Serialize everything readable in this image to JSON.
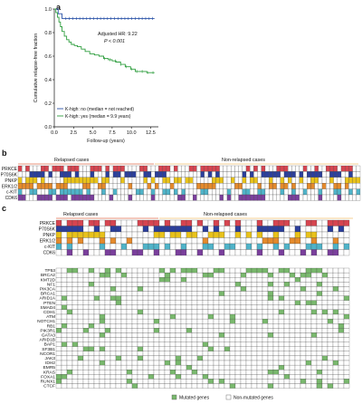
{
  "panel_a": {
    "letter": "a",
    "ylabel": "Cumulative relapse-free fraction",
    "xlabel": "Follow-up (years)",
    "annotation_hr": "Adjusted HR: 9.22",
    "annotation_p": "P < 0.001",
    "legend": [
      {
        "label": "K-high: no (median = not reached)",
        "color": "#2a52a8"
      },
      {
        "label": "K-high: yes (median = 9.9 years)",
        "color": "#2e9e3e"
      }
    ]
  },
  "chart_data": {
    "type": "line",
    "title": "",
    "xlabel": "Follow-up (years)",
    "ylabel": "Cumulative relapse-free fraction",
    "xlim": [
      0,
      13.5
    ],
    "ylim": [
      0,
      1.0
    ],
    "xticks": [
      "0.0",
      "2.5",
      "5.0",
      "7.5",
      "10.0",
      "12.5"
    ],
    "yticks": [
      "0.0",
      "0.2",
      "0.4",
      "0.6",
      "0.8",
      "1.0"
    ],
    "series": [
      {
        "name": "K-high: no (median = not reached)",
        "color": "#2a52a8",
        "x": [
          0,
          0.5,
          0.5,
          1.0,
          1.0,
          13.0
        ],
        "y": [
          1.0,
          1.0,
          0.96,
          0.96,
          0.92,
          0.92
        ]
      },
      {
        "name": "K-high: yes (median = 9.9 years)",
        "color": "#2e9e3e",
        "x": [
          0,
          0.2,
          0.4,
          0.6,
          0.8,
          1.0,
          1.3,
          1.6,
          1.9,
          2.2,
          2.6,
          3.0,
          3.5,
          4.0,
          4.6,
          5.2,
          5.8,
          6.4,
          7.0,
          7.5,
          8.0,
          8.6,
          9.2,
          9.9,
          10.5,
          11.2,
          12.0,
          13.0
        ],
        "y": [
          1.0,
          0.97,
          0.93,
          0.89,
          0.85,
          0.81,
          0.77,
          0.74,
          0.72,
          0.7,
          0.69,
          0.68,
          0.66,
          0.64,
          0.62,
          0.61,
          0.6,
          0.58,
          0.57,
          0.56,
          0.55,
          0.53,
          0.51,
          0.49,
          0.47,
          0.47,
          0.46,
          0.46
        ]
      }
    ]
  },
  "panel_b": {
    "letter": "b",
    "group_relapsed": "Relapsed cases",
    "group_nonrelapsed": "Non-relapsed cases",
    "rows": [
      "PRKCE",
      "P70S6K",
      "PNKP",
      "ERK1/2",
      "c-KIT",
      "CDK6"
    ]
  },
  "panel_c": {
    "letter": "c",
    "group_relapsed": "Relapsed cases",
    "group_nonrelapsed": "Non-relapsed cases",
    "top_rows": [
      "PRKCE",
      "P70S6K",
      "PNKP",
      "ERK1/2",
      "c-KIT",
      "CDK6"
    ],
    "gene_rows": [
      "TP53",
      "BRCA2",
      "KMT2D",
      "NF1",
      "PIK3CA",
      "BRCA1",
      "ARID1A",
      "PTEN",
      "SMAD4",
      "CDH1",
      "ATM",
      "NOTCH1",
      "RB1",
      "PIK3R1",
      "GATA3",
      "ARID1B",
      "BAP1",
      "SF3B1",
      "NCOR1",
      "JAK3",
      "IDH2",
      "EMR5",
      "KRAS",
      "FOXA1",
      "RUNX1",
      "CTCF"
    ],
    "legend_mutated": "Mutated genes",
    "legend_nonmutated": "Non-mutated genes"
  },
  "colors": {
    "prkce": "#d64550",
    "p70s6k": "#2b3f9c",
    "pnkp": "#e8c21a",
    "erk": "#e58a2b",
    "ckit": "#4fb3c8",
    "cdk6": "#7a3f9c",
    "mutated": "#79b86d",
    "relapsed_line": "#e07050",
    "nonrelapsed_line": "#f0c070"
  }
}
